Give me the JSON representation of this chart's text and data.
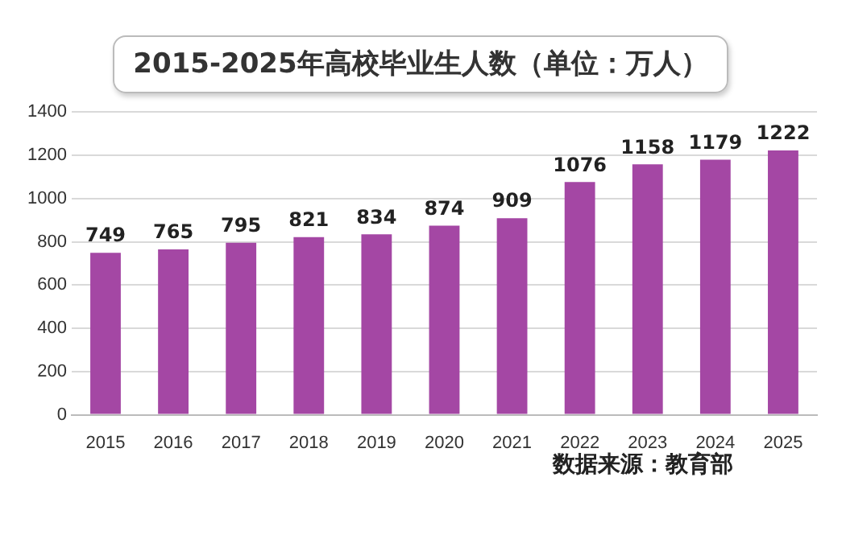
{
  "chart_data": {
    "type": "bar",
    "title": "2015-2025年高校毕业生人数（单位：万人）",
    "categories": [
      "2015",
      "2016",
      "2017",
      "2018",
      "2019",
      "2020",
      "2021",
      "2022",
      "2023",
      "2024",
      "2025"
    ],
    "values": [
      749,
      765,
      795,
      821,
      834,
      874,
      909,
      1076,
      1158,
      1179,
      1222
    ],
    "color": "#a447a4",
    "ylim": [
      0,
      1400
    ],
    "yticks": [
      0,
      200,
      400,
      600,
      800,
      1000,
      1200,
      1400
    ],
    "grid": "y",
    "data_labels": true,
    "annotations": [
      "数据来源：教育部"
    ]
  }
}
